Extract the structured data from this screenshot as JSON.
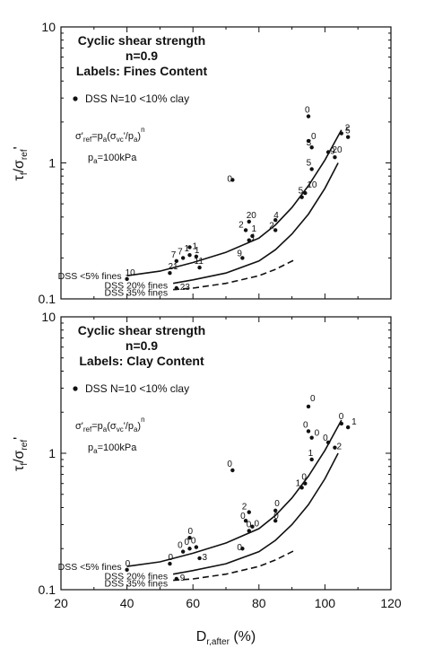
{
  "chart_data": [
    {
      "type": "scatter",
      "title": "Cyclic shear strength",
      "subtitle": "n=0.9",
      "labels_caption": "Labels: Fines Content",
      "legend_entry": "DSS N=10 <10% clay",
      "legend_placement": "top-left",
      "formula": [
        "σ'",
        "ref",
        "=p",
        "a",
        "(σ",
        "vc",
        "'/p",
        "a",
        ")",
        "n"
      ],
      "pa_note": [
        "p",
        "a",
        "=100kPa"
      ],
      "ylabel": [
        "τ",
        "f",
        "/σ",
        "ref",
        "'"
      ],
      "xlim": [
        20,
        120
      ],
      "ylim": [
        0.1,
        10
      ],
      "yscale": "log",
      "x_ticks": [
        "20",
        "40",
        "60",
        "80",
        "100",
        "120"
      ],
      "y_ticks": [
        "0.1",
        "1",
        "10"
      ],
      "points": [
        {
          "x": 40,
          "y": 0.14,
          "label": "10"
        },
        {
          "x": 53,
          "y": 0.155,
          "label": "21"
        },
        {
          "x": 55,
          "y": 0.12,
          "label": "23"
        },
        {
          "x": 55,
          "y": 0.19,
          "label": "7"
        },
        {
          "x": 57,
          "y": 0.2,
          "label": "7"
        },
        {
          "x": 59,
          "y": 0.21,
          "label": "1"
        },
        {
          "x": 61,
          "y": 0.205,
          "label": "1"
        },
        {
          "x": 59,
          "y": 0.24,
          "label": "1"
        },
        {
          "x": 62,
          "y": 0.17,
          "label": "11"
        },
        {
          "x": 72,
          "y": 0.75,
          "label": "0"
        },
        {
          "x": 75,
          "y": 0.2,
          "label": "9"
        },
        {
          "x": 76,
          "y": 0.32,
          "label": "2"
        },
        {
          "x": 77,
          "y": 0.37,
          "label": "20"
        },
        {
          "x": 77,
          "y": 0.27,
          "label": "1"
        },
        {
          "x": 78,
          "y": 0.29,
          "label": "1"
        },
        {
          "x": 85,
          "y": 0.38,
          "label": "4"
        },
        {
          "x": 85,
          "y": 0.32,
          "label": "2"
        },
        {
          "x": 93,
          "y": 0.56,
          "label": "5"
        },
        {
          "x": 94,
          "y": 0.6,
          "label": "10"
        },
        {
          "x": 95,
          "y": 2.2,
          "label": "0"
        },
        {
          "x": 96,
          "y": 0.9,
          "label": "5"
        },
        {
          "x": 95,
          "y": 1.45,
          "label": "0"
        },
        {
          "x": 96,
          "y": 1.3,
          "label": "3"
        },
        {
          "x": 101,
          "y": 1.2,
          "label": "9"
        },
        {
          "x": 103,
          "y": 1.1,
          "label": "20"
        },
        {
          "x": 105,
          "y": 1.65,
          "label": "2"
        },
        {
          "x": 107,
          "y": 1.55,
          "label": "5"
        }
      ],
      "curves": [
        {
          "name": "DSS <5% fines",
          "style": "solid",
          "x": [
            40,
            50,
            60,
            70,
            80,
            85,
            90,
            95,
            100,
            105
          ],
          "y": [
            0.148,
            0.16,
            0.185,
            0.22,
            0.28,
            0.35,
            0.47,
            0.68,
            1.05,
            1.75
          ]
        },
        {
          "name": "DSS 20% fines",
          "style": "solid",
          "x": [
            54,
            60,
            70,
            80,
            85,
            90,
            95,
            100,
            104
          ],
          "y": [
            0.13,
            0.138,
            0.155,
            0.19,
            0.23,
            0.3,
            0.42,
            0.65,
            1.0
          ]
        },
        {
          "name": "DSS 35% fines",
          "style": "dashed",
          "x": [
            54,
            60,
            70,
            80,
            85,
            91
          ],
          "y": [
            0.117,
            0.12,
            0.13,
            0.148,
            0.165,
            0.195
          ]
        }
      ]
    },
    {
      "type": "scatter",
      "title": "Cyclic shear strength",
      "subtitle": "n=0.9",
      "labels_caption": "Labels: Clay Content",
      "legend_entry": "DSS N=10 <10% clay",
      "legend_placement": "top-left",
      "formula": [
        "σ'",
        "ref",
        "=p",
        "a",
        "(σ",
        "vc",
        "'/p",
        "a",
        ")",
        "n"
      ],
      "pa_note": [
        "p",
        "a",
        "=100kPa"
      ],
      "ylabel": [
        "τ",
        "f",
        "/σ",
        "ref",
        "'"
      ],
      "xlabel": [
        "D",
        "r,after",
        " (%)"
      ],
      "xlim": [
        20,
        120
      ],
      "ylim": [
        0.1,
        10
      ],
      "yscale": "log",
      "x_ticks": [
        "20",
        "40",
        "60",
        "80",
        "100",
        "120"
      ],
      "y_ticks": [
        "0.1",
        "1",
        "10"
      ],
      "points": [
        {
          "x": 40,
          "y": 0.14,
          "label": "0"
        },
        {
          "x": 53,
          "y": 0.155,
          "label": "0"
        },
        {
          "x": 55,
          "y": 0.12,
          "label": "9"
        },
        {
          "x": 57,
          "y": 0.19,
          "label": "0"
        },
        {
          "x": 59,
          "y": 0.2,
          "label": "0"
        },
        {
          "x": 61,
          "y": 0.205,
          "label": "0"
        },
        {
          "x": 59,
          "y": 0.24,
          "label": "0"
        },
        {
          "x": 62,
          "y": 0.17,
          "label": "3"
        },
        {
          "x": 72,
          "y": 0.75,
          "label": "0"
        },
        {
          "x": 75,
          "y": 0.2,
          "label": "0"
        },
        {
          "x": 76,
          "y": 0.32,
          "label": "0"
        },
        {
          "x": 77,
          "y": 0.37,
          "label": "2"
        },
        {
          "x": 77,
          "y": 0.27,
          "label": "0"
        },
        {
          "x": 78,
          "y": 0.29,
          "label": "0"
        },
        {
          "x": 85,
          "y": 0.38,
          "label": "0"
        },
        {
          "x": 85,
          "y": 0.32,
          "label": "0"
        },
        {
          "x": 93,
          "y": 0.56,
          "label": "1"
        },
        {
          "x": 94,
          "y": 0.6,
          "label": "0"
        },
        {
          "x": 95,
          "y": 2.2,
          "label": "0"
        },
        {
          "x": 96,
          "y": 0.9,
          "label": "1"
        },
        {
          "x": 95,
          "y": 1.45,
          "label": "0"
        },
        {
          "x": 96,
          "y": 1.3,
          "label": "0"
        },
        {
          "x": 101,
          "y": 1.2,
          "label": "0"
        },
        {
          "x": 103,
          "y": 1.1,
          "label": "2"
        },
        {
          "x": 105,
          "y": 1.65,
          "label": "0"
        },
        {
          "x": 107,
          "y": 1.55,
          "label": "1"
        }
      ],
      "curves": [
        {
          "name": "DSS <5% fines",
          "style": "solid",
          "x": [
            40,
            50,
            60,
            70,
            80,
            85,
            90,
            95,
            100,
            105
          ],
          "y": [
            0.148,
            0.16,
            0.185,
            0.22,
            0.28,
            0.35,
            0.47,
            0.68,
            1.05,
            1.75
          ]
        },
        {
          "name": "DSS 20% fines",
          "style": "solid",
          "x": [
            54,
            60,
            70,
            80,
            85,
            90,
            95,
            100,
            104
          ],
          "y": [
            0.13,
            0.138,
            0.155,
            0.19,
            0.23,
            0.3,
            0.42,
            0.65,
            1.0
          ]
        },
        {
          "name": "DSS 35% fines",
          "style": "dashed",
          "x": [
            54,
            60,
            70,
            80,
            85,
            91
          ],
          "y": [
            0.117,
            0.12,
            0.13,
            0.148,
            0.165,
            0.195
          ]
        }
      ]
    }
  ]
}
